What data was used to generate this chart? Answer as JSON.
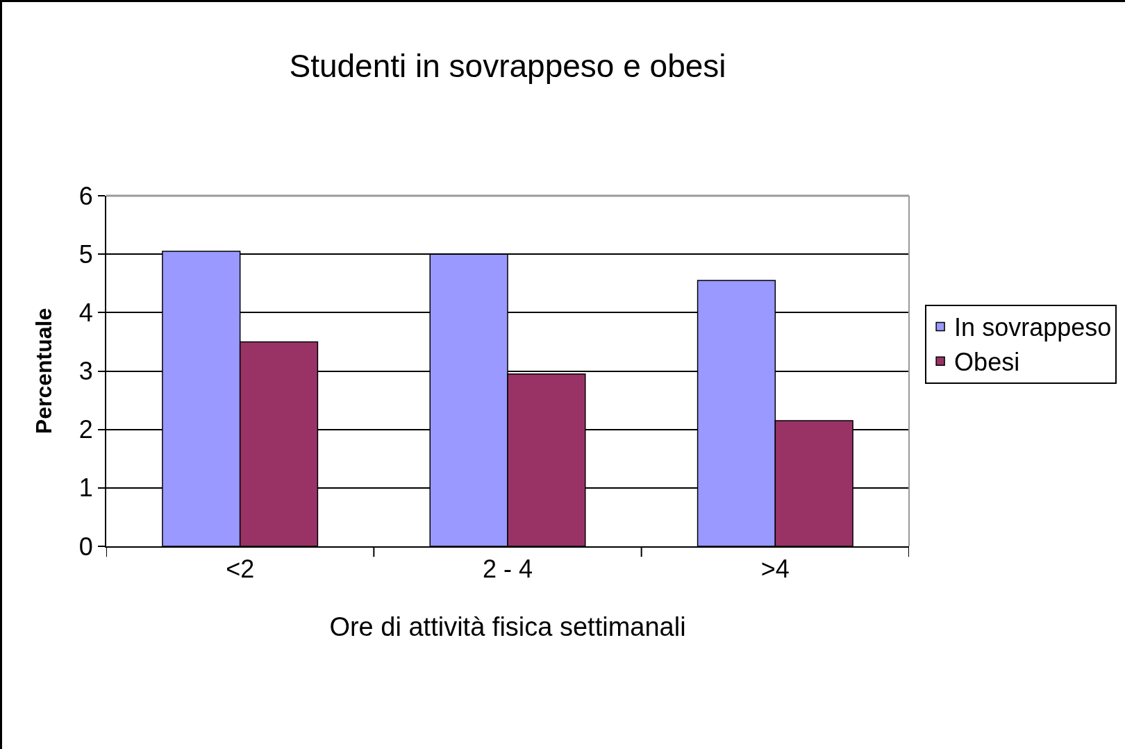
{
  "chart_data": {
    "type": "bar",
    "title": "Studenti in sovrappeso e obesi",
    "xlabel": "Ore di attività fisica settimanali",
    "ylabel": "Percentuale",
    "categories": [
      "<2",
      "2 - 4",
      ">4"
    ],
    "series": [
      {
        "name": "In sovrappeso",
        "color": "#9999ff",
        "values": [
          5.05,
          5.0,
          4.55
        ]
      },
      {
        "name": "Obesi",
        "color": "#993366",
        "values": [
          3.5,
          2.95,
          2.15
        ]
      }
    ],
    "ylim": [
      0,
      6
    ],
    "yticks": [
      0,
      1,
      2,
      3,
      4,
      5,
      6
    ],
    "grid": "y",
    "legend": "right"
  }
}
